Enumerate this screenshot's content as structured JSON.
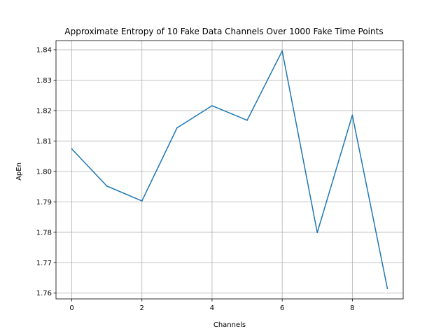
{
  "chart_data": {
    "type": "line",
    "title": "Approximate Entropy of 10 Fake Data Channels Over 1000 Fake Time Points",
    "xlabel": "Channels",
    "ylabel": "ApEn",
    "x": [
      0,
      1,
      2,
      3,
      4,
      5,
      6,
      7,
      8,
      9
    ],
    "series": [
      {
        "values": [
          1.8074,
          1.7952,
          1.7903,
          1.8143,
          1.8216,
          1.8168,
          1.8396,
          1.7799,
          1.8185,
          1.7615
        ]
      }
    ],
    "xlim": [
      -0.45,
      9.45
    ],
    "ylim": [
      1.7581,
      1.843
    ],
    "xticks": [
      0,
      2,
      4,
      6,
      8
    ],
    "xtick_labels": [
      "0",
      "2",
      "4",
      "6",
      "8"
    ],
    "yticks": [
      1.76,
      1.77,
      1.78,
      1.79,
      1.8,
      1.81,
      1.82,
      1.83,
      1.84
    ],
    "ytick_labels": [
      "1.76",
      "1.77",
      "1.78",
      "1.79",
      "1.80",
      "1.81",
      "1.82",
      "1.83",
      "1.84"
    ],
    "grid": true,
    "line_color": "#1f77b4",
    "grid_color": "#b0b0b0"
  }
}
